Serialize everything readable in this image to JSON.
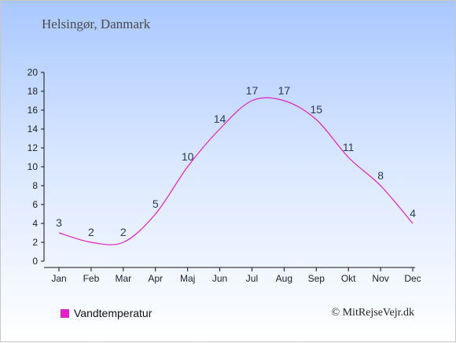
{
  "chart_data": {
    "type": "line",
    "title": "Helsingør, Danmark",
    "categories": [
      "Jan",
      "Feb",
      "Mar",
      "Apr",
      "Maj",
      "Jun",
      "Jul",
      "Aug",
      "Sep",
      "Okt",
      "Nov",
      "Dec"
    ],
    "series": [
      {
        "name": "Vandtemperatur",
        "values": [
          3,
          2,
          2,
          5,
          10,
          14,
          17,
          17,
          15,
          11,
          8,
          4
        ],
        "color": "#e020c8"
      }
    ],
    "yticks": [
      0,
      2,
      4,
      6,
      8,
      10,
      12,
      14,
      16,
      18,
      20
    ],
    "ylim": [
      0,
      20
    ],
    "grid": false,
    "legend_position": "bottom-left"
  },
  "credit": "© MitRejseVejr.dk"
}
